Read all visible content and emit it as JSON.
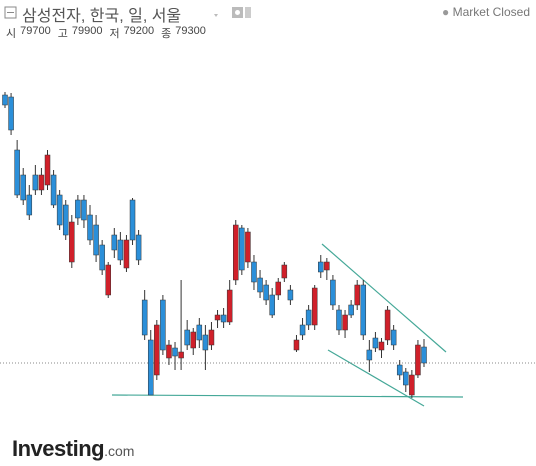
{
  "chart_data": {
    "type": "candlestick",
    "title": "삼성전자, 한국, 일, 서울",
    "status": "Market Closed",
    "header_labels": [
      "시",
      "고",
      "저",
      "종"
    ],
    "open": [
      86000,
      85950,
      84625,
      84000,
      83500,
      84000,
      83625,
      83750,
      84000,
      83500,
      83250,
      81825,
      83375,
      83375,
      83000,
      82750,
      82250,
      81000,
      82500,
      82375,
      81675,
      83375,
      82500,
      80875,
      79875,
      79000,
      80875,
      79425,
      79675,
      79425,
      80125,
      79675,
      80250,
      80000,
      79750,
      80375,
      80500,
      80325,
      81375,
      82675,
      81825,
      81825,
      81425,
      81250,
      81000,
      81000,
      81425,
      81125,
      79625,
      80250,
      80625,
      80250,
      81825,
      81625,
      81375,
      80625,
      80125,
      80750,
      80750,
      81250,
      79625,
      79925,
      79625,
      79875,
      80125,
      79250,
      79075,
      78500,
      79000,
      79700
    ],
    "high": [
      86075,
      86050,
      84875,
      84175,
      83750,
      84250,
      84175,
      84625,
      84125,
      83625,
      83375,
      83000,
      83500,
      83500,
      83250,
      83000,
      82375,
      81825,
      82675,
      82575,
      82500,
      83425,
      82625,
      81125,
      80125,
      80375,
      81000,
      79875,
      79825,
      81375,
      80375,
      80175,
      80425,
      80250,
      80325,
      80625,
      80675,
      81375,
      82875,
      82750,
      82675,
      82000,
      81625,
      81375,
      81175,
      81425,
      81825,
      81250,
      80000,
      80425,
      80750,
      81250,
      82000,
      81925,
      81500,
      80750,
      80625,
      80875,
      81375,
      81375,
      79875,
      80075,
      79925,
      80725,
      80250,
      79375,
      79175,
      79125,
      79875,
      79900
    ],
    "low": [
      85675,
      85000,
      83425,
      83250,
      82875,
      83500,
      83500,
      83625,
      83175,
      82625,
      82375,
      81675,
      82750,
      82675,
      82250,
      81825,
      81500,
      80925,
      81925,
      81750,
      81575,
      82250,
      81750,
      79875,
      78500,
      78875,
      79500,
      79250,
      79125,
      79125,
      79625,
      79500,
      79675,
      79125,
      79625,
      80175,
      80175,
      80250,
      81250,
      81500,
      81675,
      81125,
      80925,
      80750,
      80425,
      80875,
      81325,
      80750,
      79575,
      79875,
      80125,
      80125,
      81425,
      81375,
      80625,
      80000,
      79925,
      80425,
      80625,
      79875,
      79075,
      79575,
      79425,
      79750,
      79625,
      78875,
      78575,
      78425,
      78925,
      79200
    ],
    "close": [
      85750,
      85125,
      83500,
      83375,
      83000,
      83625,
      84000,
      84500,
      83250,
      82750,
      82500,
      82825,
      82925,
      82875,
      82375,
      82000,
      81625,
      81750,
      82125,
      81875,
      82375,
      82375,
      81875,
      80000,
      78500,
      80250,
      79625,
      79750,
      79475,
      79575,
      79750,
      80075,
      79875,
      79625,
      80125,
      80500,
      80325,
      81125,
      82750,
      81625,
      82575,
      81325,
      81075,
      80875,
      80500,
      81325,
      81750,
      80875,
      79875,
      80000,
      80250,
      81175,
      81575,
      81825,
      80750,
      80125,
      80500,
      80500,
      81250,
      80000,
      79375,
      79675,
      79825,
      80625,
      79750,
      79000,
      78750,
      79000,
      79750,
      79300
    ],
    "up_color": "#d0202a",
    "down_color": "#2b8fd9",
    "ylim": [
      77500,
      87750
    ],
    "last_price_line": true
  },
  "logo": {
    "brand": "Investing",
    "suffix": ".com"
  }
}
